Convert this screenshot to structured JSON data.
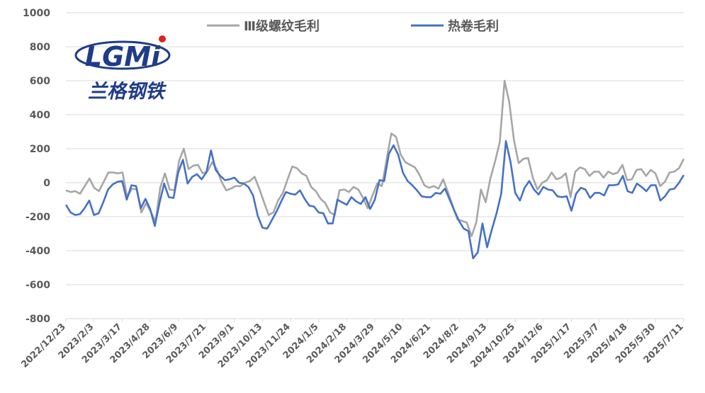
{
  "chart_data": {
    "type": "line",
    "xlabel": "",
    "ylabel": "",
    "ylim": [
      -800,
      1000
    ],
    "yticks": [
      1000,
      800,
      600,
      400,
      200,
      0,
      -200,
      -400,
      -600,
      -800
    ],
    "grid": true,
    "legend_position": "top",
    "x_tick_labels": [
      "2022/12/23",
      "2023/2/3",
      "2023/3/17",
      "2023/4/28",
      "2023/6/9",
      "2023/7/21",
      "2023/9/1",
      "2023/10/13",
      "2023/11/24",
      "2024/1/5",
      "2024/2/18",
      "2024/3/29",
      "2024/5/10",
      "2024/6/21",
      "2024/8/2",
      "2024/9/13",
      "2024/10/25",
      "2024/12/6",
      "2025/1/17",
      "2025/3/7",
      "2025/4/18",
      "2025/5/30",
      "2025/7/11"
    ],
    "series": [
      {
        "name": "Ⅲ级螺纹毛利",
        "color": "#a6a6a6",
        "values": [
          -45,
          -55,
          -50,
          -65,
          -20,
          25,
          -30,
          -50,
          5,
          60,
          60,
          55,
          60,
          -85,
          -35,
          -40,
          -175,
          -120,
          -170,
          -230,
          -30,
          55,
          -40,
          -45,
          130,
          200,
          80,
          100,
          105,
          55,
          65,
          120,
          80,
          5,
          -45,
          -35,
          -20,
          -20,
          0,
          10,
          35,
          -35,
          -115,
          -190,
          -175,
          -105,
          -60,
          20,
          95,
          85,
          55,
          40,
          -25,
          -50,
          -95,
          -120,
          -175,
          -190,
          -45,
          -40,
          -55,
          -25,
          -40,
          -90,
          -150,
          -75,
          -5,
          -20,
          135,
          290,
          270,
          165,
          120,
          105,
          90,
          45,
          -15,
          -30,
          -20,
          -35,
          20,
          -55,
          -135,
          -215,
          -225,
          -235,
          -315,
          -235,
          -40,
          -115,
          25,
          125,
          240,
          600,
          475,
          250,
          115,
          140,
          145,
          30,
          -40,
          0,
          15,
          60,
          20,
          30,
          55,
          -85,
          65,
          90,
          80,
          40,
          65,
          65,
          30,
          65,
          50,
          60,
          105,
          15,
          20,
          75,
          80,
          40,
          75,
          55,
          -20,
          5,
          60,
          65,
          85,
          140
        ]
      },
      {
        "name": "热卷毛利",
        "color": "#4472c4",
        "values": [
          -130,
          -175,
          -190,
          -185,
          -150,
          -105,
          -190,
          -180,
          -115,
          -40,
          -10,
          5,
          10,
          -100,
          -15,
          -20,
          -150,
          -95,
          -155,
          -255,
          -120,
          -5,
          -85,
          -90,
          60,
          135,
          -5,
          35,
          50,
          20,
          60,
          190,
          75,
          40,
          15,
          20,
          30,
          0,
          -5,
          -25,
          -75,
          -195,
          -265,
          -270,
          -220,
          -170,
          -110,
          -55,
          -65,
          -70,
          -45,
          -95,
          -135,
          -140,
          -175,
          -180,
          -240,
          -240,
          -100,
          -115,
          -130,
          -85,
          -110,
          -125,
          -85,
          -155,
          -100,
          15,
          10,
          170,
          220,
          165,
          60,
          10,
          -15,
          -45,
          -80,
          -85,
          -85,
          -60,
          -65,
          -35,
          -100,
          -165,
          -225,
          -270,
          -285,
          -445,
          -410,
          -240,
          -380,
          -275,
          -180,
          -65,
          245,
          120,
          -60,
          -105,
          -30,
          10,
          -40,
          -70,
          -25,
          -40,
          -45,
          -80,
          -85,
          -80,
          -165,
          -65,
          -30,
          -40,
          -90,
          -60,
          -60,
          -75,
          -15,
          -15,
          -10,
          40,
          -50,
          -60,
          -5,
          -25,
          -50,
          -15,
          -15,
          -105,
          -80,
          -40,
          -35,
          0,
          45
        ]
      }
    ]
  },
  "logo": {
    "text": "LGMi",
    "subtitle": "兰格钢铁",
    "color": "#1f3c88",
    "accent": "#e02020"
  }
}
